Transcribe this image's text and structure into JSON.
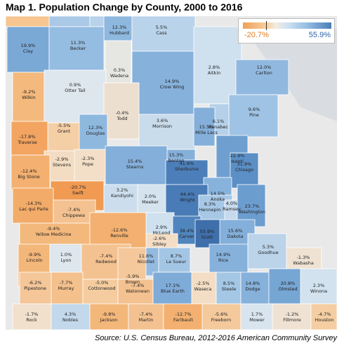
{
  "title": "Map 1. Population Change by County, 2000 to 2016",
  "source": "Source: U.S. Census Bureau, 2012-2016 American Community Survey",
  "legend": {
    "min": "-20.7%",
    "max": "55.9%",
    "min_color": "#f0a156",
    "max_color": "#4b7db8"
  },
  "background": {
    "outside_color": "#e9e9e9",
    "lake_color": "#d9dde2"
  },
  "counties": [
    {
      "name": "",
      "value": "",
      "color": "#f7c590"
    },
    {
      "name": "",
      "value": "",
      "color": "#a9c9e6"
    },
    {
      "name": "",
      "value": "",
      "color": "#b7d2ea"
    },
    {
      "name": "",
      "value": "",
      "color": "#c9dcec"
    },
    {
      "name": "Hubbard",
      "value": "12.3%",
      "color": "#8fb8df"
    },
    {
      "name": "Cass",
      "value": "5.5%",
      "color": "#b9d3ea"
    },
    {
      "name": "Clay",
      "value": "19.9%",
      "color": "#7ba9d6"
    },
    {
      "name": "Becker",
      "value": "11.3%",
      "color": "#95bce1"
    },
    {
      "name": "Wadena",
      "value": "0.3%",
      "color": "#e6e6e2"
    },
    {
      "name": "Aitkin",
      "value": "2.8%",
      "color": "#cfe0ee"
    },
    {
      "name": "Carlton",
      "value": "12.0%",
      "color": "#91b9df"
    },
    {
      "name": "Wilkin",
      "value": "-9.2%",
      "color": "#f4b97c"
    },
    {
      "name": "Otter Tail",
      "value": "0.9%",
      "color": "#dfe7ee"
    },
    {
      "name": "Crow Wing",
      "value": "14.9%",
      "color": "#86b1db"
    },
    {
      "name": "Pine",
      "value": "9.6%",
      "color": "#9fc3e4"
    },
    {
      "name": "Todd",
      "value": "-0.4%",
      "color": "#ecdfd0"
    },
    {
      "name": "Morrison",
      "value": "3.6%",
      "color": "#c9dcec"
    },
    {
      "name": "Kanabec",
      "value": "6.1%",
      "color": "#b5d0e9"
    },
    {
      "name": "Grant",
      "value": "-5.5%",
      "color": "#f4cfa6"
    },
    {
      "name": "Douglas",
      "value": "12.3%",
      "color": "#8fb8df"
    },
    {
      "name": "Mille Lacs",
      "value": "15.5%",
      "color": "#84afda"
    },
    {
      "name": "Traverse",
      "value": "-17.8%",
      "color": "#f2a460"
    },
    {
      "name": "Stevens",
      "value": "-2.9%",
      "color": "#f3dcc2"
    },
    {
      "name": "Pope",
      "value": "-2.3%",
      "color": "#f3dfc8"
    },
    {
      "name": "Benton",
      "value": "15.3%",
      "color": "#85b0da"
    },
    {
      "name": "Isanti",
      "value": "22.9%",
      "color": "#6e9fd0"
    },
    {
      "name": "Stearns",
      "value": "15.4%",
      "color": "#84afda"
    },
    {
      "name": "Chisago",
      "value": "31.9%",
      "color": "#5b8fc5"
    },
    {
      "name": "Big Stone",
      "value": "-12.4%",
      "color": "#f3b070"
    },
    {
      "name": "Swift",
      "value": "-20.7%",
      "color": "#f09a52"
    },
    {
      "name": "Sherburne",
      "value": "41.6%",
      "color": "#4c7fb9"
    },
    {
      "name": "Anoka",
      "value": "14.5%",
      "color": "#87b2db"
    },
    {
      "name": "Kandiyohi",
      "value": "3.2%",
      "color": "#ccdeed"
    },
    {
      "name": "Meeker",
      "value": "2.0%",
      "color": "#d5e3ee"
    },
    {
      "name": "Wright",
      "value": "44.4%",
      "color": "#497bb6"
    },
    {
      "name": "Lac qui Parle",
      "value": "-14.3%",
      "color": "#f2ab68"
    },
    {
      "name": "Chippewa",
      "value": "-7.4%",
      "color": "#f4c290"
    },
    {
      "name": "Hennepin",
      "value": "8.3%",
      "color": "#a6c8e6"
    },
    {
      "name": "Ramsey",
      "value": "4.0%",
      "color": "#c6daec"
    },
    {
      "name": "Washington",
      "value": "23.7%",
      "color": "#6c9dcf"
    },
    {
      "name": "Yellow Medicine",
      "value": "-9.4%",
      "color": "#f3b87c"
    },
    {
      "name": "Renville",
      "value": "-12.6%",
      "color": "#f3b070"
    },
    {
      "name": "McLeod",
      "value": "2.9%",
      "color": "#cfe0ee"
    },
    {
      "name": "Carver",
      "value": "38.4%",
      "color": "#5085bd"
    },
    {
      "name": "Scott",
      "value": "55.9%",
      "color": "#3f6faa"
    },
    {
      "name": "Dakota",
      "value": "15.6%",
      "color": "#84afda"
    },
    {
      "name": "Sibley",
      "value": "-2.6%",
      "color": "#f3ddc4"
    },
    {
      "name": "Lincoln",
      "value": "-9.9%",
      "color": "#f3b77a"
    },
    {
      "name": "Lyon",
      "value": "1.0%",
      "color": "#dee6ee"
    },
    {
      "name": "Redwood",
      "value": "-7.4%",
      "color": "#f4c290"
    },
    {
      "name": "Nicollet",
      "value": "11.6%",
      "color": "#93bae0"
    },
    {
      "name": "Le Sueur",
      "value": "8.7%",
      "color": "#a4c6e5"
    },
    {
      "name": "Rice",
      "value": "14.9%",
      "color": "#86b1db"
    },
    {
      "name": "Goodhue",
      "value": "5.3%",
      "color": "#bbd4ea"
    },
    {
      "name": "Brown",
      "value": "-5.9%",
      "color": "#f4c89a"
    },
    {
      "name": "Wabasha",
      "value": "-1.3%",
      "color": "#efe2d2"
    },
    {
      "name": "Pipestone",
      "value": "-6.2%",
      "color": "#f4c698"
    },
    {
      "name": "Murray",
      "value": "-7.7%",
      "color": "#f4c08c"
    },
    {
      "name": "Cottonwood",
      "value": "-5.0%",
      "color": "#f4cc9f"
    },
    {
      "name": "Watonwan",
      "value": "-7.4%",
      "color": "#f4c290"
    },
    {
      "name": "Blue Earth",
      "value": "17.1%",
      "color": "#7fabd8"
    },
    {
      "name": "Waseca",
      "value": "-2.5%",
      "color": "#f3ddc4"
    },
    {
      "name": "Steele",
      "value": "8.5%",
      "color": "#a5c7e6"
    },
    {
      "name": "Dodge",
      "value": "14.8%",
      "color": "#86b1db"
    },
    {
      "name": "Olmsted",
      "value": "20.8%",
      "color": "#76a6d4"
    },
    {
      "name": "Winona",
      "value": "2.3%",
      "color": "#d2e2ee"
    },
    {
      "name": "Rock",
      "value": "-1.7%",
      "color": "#f1e0cc"
    },
    {
      "name": "Nobles",
      "value": "4.3%",
      "color": "#c3d8eb"
    },
    {
      "name": "Jackson",
      "value": "-9.8%",
      "color": "#f3b77a"
    },
    {
      "name": "Martin",
      "value": "-7.4%",
      "color": "#f4c290"
    },
    {
      "name": "Faribault",
      "value": "-12.7%",
      "color": "#f3b070"
    },
    {
      "name": "Freeborn",
      "value": "-5.6%",
      "color": "#f4c99c"
    },
    {
      "name": "Mower",
      "value": "1.7%",
      "color": "#d8e4ee"
    },
    {
      "name": "Fillmore",
      "value": "-1.2%",
      "color": "#efe2d3"
    },
    {
      "name": "Houston",
      "value": "-4.7%",
      "color": "#f4cea2"
    }
  ]
}
